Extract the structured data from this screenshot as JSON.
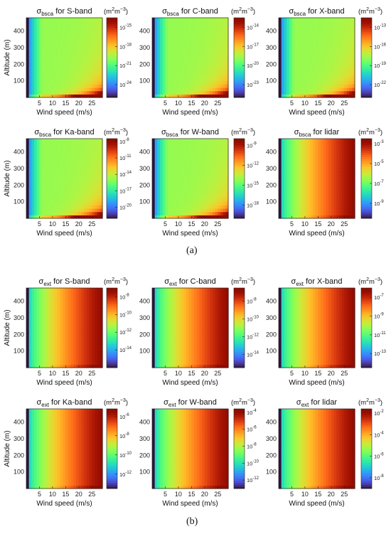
{
  "figure_labels": {
    "a": "(a)",
    "b": "(b)"
  },
  "axis_common": {
    "xlabel": "Wind speed (m/s)",
    "ylabel": "Altitude (m)",
    "xticks": [
      5,
      10,
      15,
      20,
      25
    ],
    "yticks": [
      100,
      200,
      300,
      400
    ],
    "xlim": [
      0,
      29
    ],
    "ylim": [
      0,
      480
    ],
    "colormap": "turbo",
    "unit": "(m²m⁻³)",
    "unit_base": "(m",
    "unit_mid": "m",
    "unit_end": ")"
  },
  "chart_data": [
    {
      "type": "heatmap",
      "panel": "a",
      "quantity": "σ_bsca",
      "sigma": "σ",
      "sub": "bsca",
      "band": "for S-band",
      "cbar_exponents": [
        -15,
        -18,
        -21,
        -24
      ],
      "clim_log": [
        -26,
        -13.5
      ],
      "shape": "surface"
    },
    {
      "type": "heatmap",
      "panel": "a",
      "quantity": "σ_bsca",
      "sigma": "σ",
      "sub": "bsca",
      "band": "for C-band",
      "cbar_exponents": [
        -14,
        -17,
        -20,
        -23
      ],
      "clim_log": [
        -25,
        -12.5
      ],
      "shape": "surface"
    },
    {
      "type": "heatmap",
      "panel": "a",
      "quantity": "σ_bsca",
      "sigma": "σ",
      "sub": "bsca",
      "band": "for X-band",
      "cbar_exponents": [
        -13,
        -16,
        -19,
        -22
      ],
      "clim_log": [
        -24,
        -11.5
      ],
      "shape": "surface"
    },
    {
      "type": "heatmap",
      "panel": "a",
      "quantity": "σ_bsca",
      "sigma": "σ",
      "sub": "bsca",
      "band": "for Ka-band",
      "cbar_exponents": [
        -8,
        -11,
        -14,
        -17,
        -20
      ],
      "clim_log": [
        -22,
        -7.5
      ],
      "shape": "surface"
    },
    {
      "type": "heatmap",
      "panel": "a",
      "quantity": "σ_bsca",
      "sigma": "σ",
      "sub": "bsca",
      "band": "for W-band",
      "cbar_exponents": [
        -9,
        -12,
        -15,
        -18
      ],
      "clim_log": [
        -20,
        -8
      ],
      "shape": "surface"
    },
    {
      "type": "heatmap",
      "panel": "a",
      "quantity": "σ_bsca",
      "sigma": "σ",
      "sub": "bsca",
      "band": "for lidar",
      "cbar_exponents": [
        -3,
        -5,
        -7,
        -9
      ],
      "clim_log": [
        -10.5,
        -2.5
      ],
      "shape": "wind"
    },
    {
      "type": "heatmap",
      "panel": "b",
      "quantity": "σ_ext",
      "sigma": "σ",
      "sub": "ext",
      "band": "for S-band",
      "cbar_exponents": [
        -8,
        -10,
        -12,
        -14
      ],
      "clim_log": [
        -16,
        -7
      ],
      "shape": "wind"
    },
    {
      "type": "heatmap",
      "panel": "b",
      "quantity": "σ_ext",
      "sigma": "σ",
      "sub": "ext",
      "band": "for C-band",
      "cbar_exponents": [
        -8,
        -10,
        -12,
        -14
      ],
      "clim_log": [
        -15.5,
        -6.5
      ],
      "shape": "wind"
    },
    {
      "type": "heatmap",
      "panel": "b",
      "quantity": "σ_ext",
      "sigma": "σ",
      "sub": "ext",
      "band": "for X-band",
      "cbar_exponents": [
        -7,
        -9,
        -11,
        -13
      ],
      "clim_log": [
        -14.5,
        -6
      ],
      "shape": "wind"
    },
    {
      "type": "heatmap",
      "panel": "b",
      "quantity": "σ_ext",
      "sigma": "σ",
      "sub": "ext",
      "band": "for Ka-band",
      "cbar_exponents": [
        -6,
        -8,
        -10,
        -12
      ],
      "clim_log": [
        -13.5,
        -5.2
      ],
      "shape": "wind"
    },
    {
      "type": "heatmap",
      "panel": "b",
      "quantity": "σ_ext",
      "sigma": "σ",
      "sub": "ext",
      "band": "for W-band",
      "cbar_exponents": [
        -4,
        -6,
        -8,
        -10,
        -12
      ],
      "clim_log": [
        -13,
        -3.6
      ],
      "shape": "wind"
    },
    {
      "type": "heatmap",
      "panel": "b",
      "quantity": "σ_ext",
      "sigma": "σ",
      "sub": "ext",
      "band": "for lidar",
      "cbar_exponents": [
        -2,
        -4,
        -6,
        -8
      ],
      "clim_log": [
        -9,
        -1.6
      ],
      "shape": "wind"
    }
  ]
}
